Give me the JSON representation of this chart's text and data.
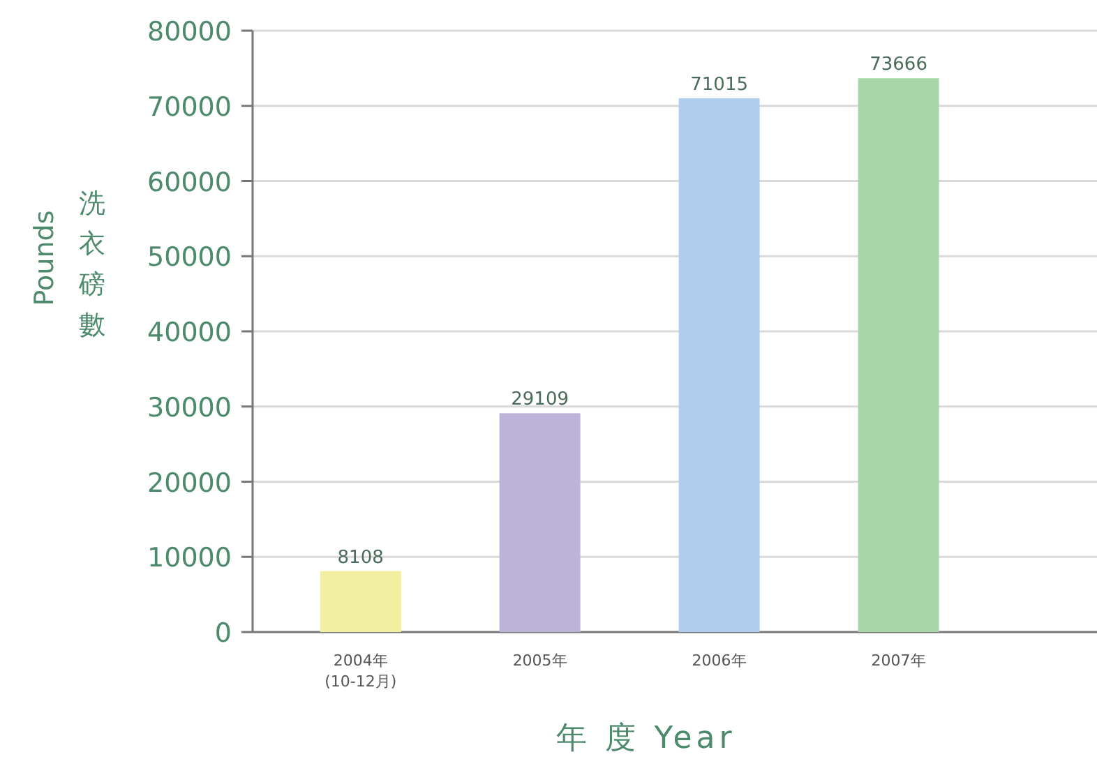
{
  "chart_data": {
    "type": "bar",
    "categories": [
      "2004年\n(10-12月)",
      "2005年",
      "2006年",
      "2007年"
    ],
    "values": [
      8108,
      29109,
      71015,
      73666
    ],
    "colors": [
      "#f3efa0",
      "#bdb3d9",
      "#b1cdee",
      "#a9d6a9"
    ],
    "xlabel": "年 度 Year",
    "ylabel": "洗衣磅數 Pounds",
    "ylim": [
      0,
      80000
    ],
    "yticks": [
      0,
      10000,
      20000,
      30000,
      40000,
      50000,
      60000,
      70000,
      80000
    ],
    "grid": "y",
    "data_labels": true
  }
}
